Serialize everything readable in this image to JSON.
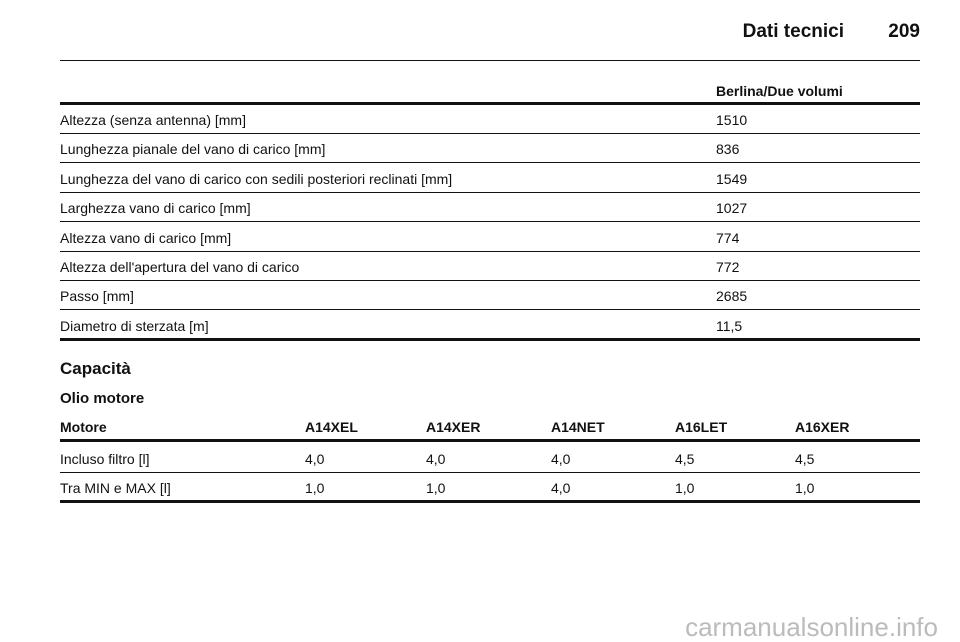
{
  "header": {
    "title": "Dati tecnici",
    "page": "209"
  },
  "dimensions": {
    "columns": [
      "Berlina/Due volumi"
    ],
    "rows": [
      [
        "Altezza (senza antenna) [mm]",
        "1510"
      ],
      [
        "Lunghezza pianale del vano di carico [mm]",
        "836"
      ],
      [
        "Lunghezza del vano di carico con sedili posteriori reclinati [mm]",
        "1549"
      ],
      [
        "Larghezza vano di carico [mm]",
        "1027"
      ],
      [
        "Altezza vano di carico [mm]",
        "774"
      ],
      [
        "Altezza dell'apertura del vano di carico",
        "772"
      ],
      [
        "Passo [mm]",
        "2685"
      ],
      [
        "Diametro di sterzata [m]",
        "11,5"
      ]
    ]
  },
  "section": {
    "title": "Capacità",
    "subtitle": "Olio motore"
  },
  "oil": {
    "columns": [
      "Motore",
      "A14XEL",
      "A14XER",
      "A14NET",
      "A16LET",
      "A16XER"
    ],
    "rows": [
      [
        "Incluso filtro [l]",
        "4,0",
        "4,0",
        "4,0",
        "4,5",
        "4,5"
      ],
      [
        "Tra MIN e MAX [l]",
        "1,0",
        "1,0",
        "4,0",
        "1,0",
        "1,0"
      ]
    ]
  },
  "watermark": "carmanualsonline.info"
}
